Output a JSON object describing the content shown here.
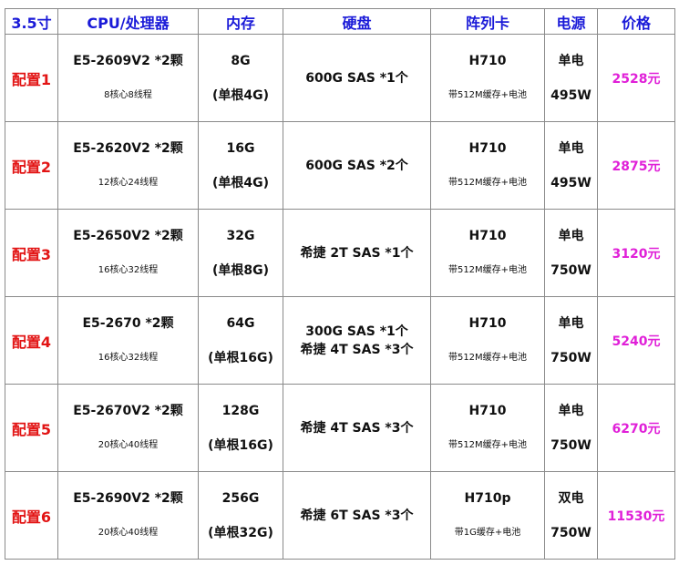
{
  "colors": {
    "header": "#1a1ad8",
    "config": "#e21414",
    "price": "#e020d8"
  },
  "headers": [
    "3.5寸",
    "CPU/处理器",
    "内存",
    "硬盘",
    "阵列卡",
    "电源",
    "价格"
  ],
  "rows": [
    {
      "config": "配置1",
      "cpu": "E5-2609V2 *2颗",
      "cores": "8核心8线程",
      "mem": "8G",
      "mem_detail": "(单根4G)",
      "disk": [
        "600G SAS *1个"
      ],
      "raid": "H710",
      "raid_detail": "带512M缓存+电池",
      "psu": "单电",
      "psu_w": "495W",
      "price": "2528元"
    },
    {
      "config": "配置2",
      "cpu": "E5-2620V2 *2颗",
      "cores": "12核心24线程",
      "mem": "16G",
      "mem_detail": "(单根4G)",
      "disk": [
        "600G SAS *2个"
      ],
      "raid": "H710",
      "raid_detail": "带512M缓存+电池",
      "psu": "单电",
      "psu_w": "495W",
      "price": "2875元"
    },
    {
      "config": "配置3",
      "cpu": "E5-2650V2 *2颗",
      "cores": "16核心32线程",
      "mem": "32G",
      "mem_detail": "(单根8G)",
      "disk": [
        "希捷 2T SAS *1个"
      ],
      "raid": "H710",
      "raid_detail": "带512M缓存+电池",
      "psu": "单电",
      "psu_w": "750W",
      "price": "3120元"
    },
    {
      "config": "配置4",
      "cpu": "E5-2670 *2颗",
      "cores": "16核心32线程",
      "mem": "64G",
      "mem_detail": "(单根16G)",
      "disk": [
        "300G SAS *1个",
        "希捷 4T SAS *3个"
      ],
      "raid": "H710",
      "raid_detail": "带512M缓存+电池",
      "psu": "单电",
      "psu_w": "750W",
      "price": "5240元"
    },
    {
      "config": "配置5",
      "cpu": "E5-2670V2 *2颗",
      "cores": "20核心40线程",
      "mem": "128G",
      "mem_detail": "(单根16G)",
      "disk": [
        "希捷 4T SAS *3个"
      ],
      "raid": "H710",
      "raid_detail": "带512M缓存+电池",
      "psu": "单电",
      "psu_w": "750W",
      "price": "6270元"
    },
    {
      "config": "配置6",
      "cpu": "E5-2690V2 *2颗",
      "cores": "20核心40线程",
      "mem": "256G",
      "mem_detail": "(单根32G)",
      "disk": [
        "希捷 6T SAS *3个"
      ],
      "raid": "H710p",
      "raid_detail": "带1G缓存+电池",
      "psu": "双电",
      "psu_w": "750W",
      "price": "11530元"
    }
  ]
}
